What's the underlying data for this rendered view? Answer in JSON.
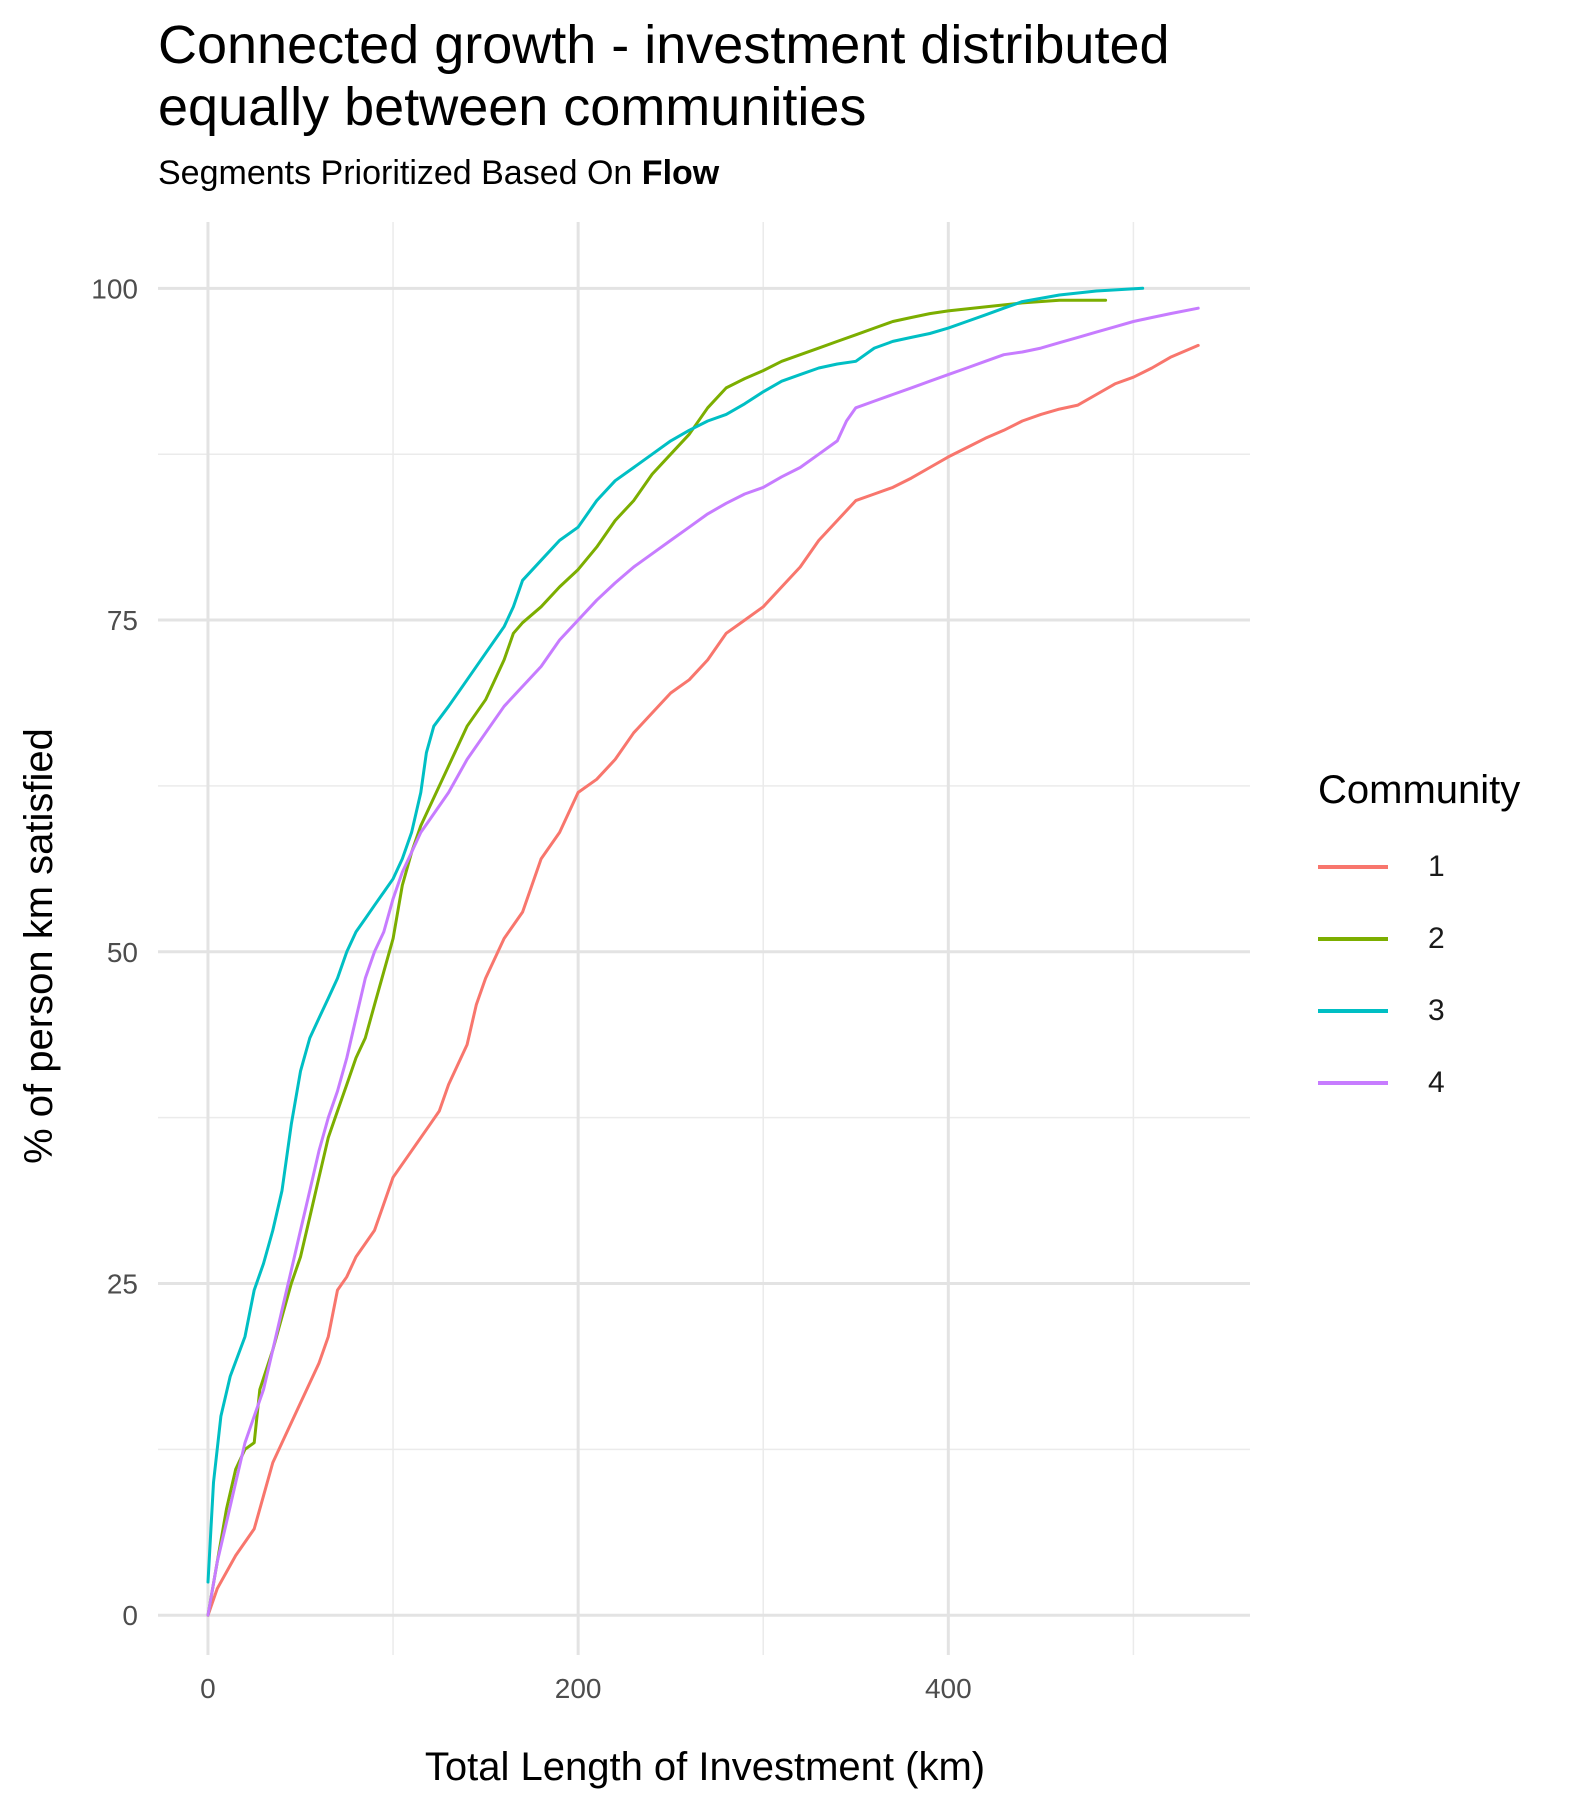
{
  "chart_data": {
    "type": "line",
    "title_line1": "Connected growth - investment distributed",
    "title_line2": "equally between communities",
    "subtitle_prefix": "Segments Prioritized Based On ",
    "subtitle_bold": "Flow",
    "xlabel": "Total Length of Investment (km)",
    "ylabel": "% of person km satisfied",
    "xlim": [
      -27,
      563
    ],
    "ylim": [
      -3,
      105
    ],
    "x_ticks": [
      0,
      200,
      400
    ],
    "y_ticks": [
      0,
      25,
      50,
      75,
      100
    ],
    "grid": true,
    "legend_position": "right",
    "legend_title": "Community",
    "series": [
      {
        "name": "1",
        "color": "#F8766D",
        "points": [
          [
            0,
            0
          ],
          [
            5,
            2
          ],
          [
            15,
            4.5
          ],
          [
            25,
            6.5
          ],
          [
            30,
            9
          ],
          [
            35,
            11.5
          ],
          [
            40,
            13
          ],
          [
            50,
            16
          ],
          [
            60,
            19
          ],
          [
            65,
            21
          ],
          [
            70,
            24.5
          ],
          [
            75,
            25.5
          ],
          [
            80,
            27
          ],
          [
            90,
            29
          ],
          [
            95,
            31
          ],
          [
            100,
            33
          ],
          [
            110,
            35
          ],
          [
            120,
            37
          ],
          [
            125,
            38
          ],
          [
            130,
            40
          ],
          [
            140,
            43
          ],
          [
            145,
            46
          ],
          [
            150,
            48
          ],
          [
            160,
            51
          ],
          [
            170,
            53
          ],
          [
            180,
            57
          ],
          [
            190,
            59
          ],
          [
            200,
            62
          ],
          [
            210,
            63
          ],
          [
            220,
            64.5
          ],
          [
            230,
            66.5
          ],
          [
            240,
            68
          ],
          [
            250,
            69.5
          ],
          [
            260,
            70.5
          ],
          [
            270,
            72
          ],
          [
            280,
            74
          ],
          [
            290,
            75
          ],
          [
            300,
            76
          ],
          [
            310,
            77.5
          ],
          [
            320,
            79
          ],
          [
            330,
            81
          ],
          [
            340,
            82.5
          ],
          [
            350,
            84
          ],
          [
            360,
            84.5
          ],
          [
            370,
            85
          ],
          [
            380,
            85.7
          ],
          [
            390,
            86.5
          ],
          [
            400,
            87.3
          ],
          [
            410,
            88
          ],
          [
            420,
            88.7
          ],
          [
            430,
            89.3
          ],
          [
            440,
            90
          ],
          [
            450,
            90.5
          ],
          [
            460,
            90.9
          ],
          [
            470,
            91.2
          ],
          [
            480,
            92
          ],
          [
            490,
            92.8
          ],
          [
            500,
            93.3
          ],
          [
            510,
            94
          ],
          [
            520,
            94.8
          ],
          [
            535,
            95.7
          ]
        ]
      },
      {
        "name": "2",
        "color": "#7CAE00",
        "points": [
          [
            0,
            0
          ],
          [
            5,
            4
          ],
          [
            10,
            8
          ],
          [
            15,
            11
          ],
          [
            20,
            12.5
          ],
          [
            25,
            13
          ],
          [
            28,
            17
          ],
          [
            35,
            20
          ],
          [
            40,
            22.5
          ],
          [
            45,
            25
          ],
          [
            50,
            27
          ],
          [
            55,
            30
          ],
          [
            60,
            33
          ],
          [
            65,
            36
          ],
          [
            70,
            38
          ],
          [
            75,
            40
          ],
          [
            80,
            42
          ],
          [
            85,
            43.5
          ],
          [
            90,
            46
          ],
          [
            95,
            48.5
          ],
          [
            100,
            51
          ],
          [
            105,
            55
          ],
          [
            110,
            57.5
          ],
          [
            115,
            59.5
          ],
          [
            120,
            61
          ],
          [
            130,
            64
          ],
          [
            140,
            67
          ],
          [
            150,
            69
          ],
          [
            155,
            70.5
          ],
          [
            160,
            72
          ],
          [
            165,
            74
          ],
          [
            170,
            74.8
          ],
          [
            180,
            76
          ],
          [
            190,
            77.5
          ],
          [
            200,
            78.8
          ],
          [
            210,
            80.5
          ],
          [
            220,
            82.5
          ],
          [
            230,
            84
          ],
          [
            240,
            86
          ],
          [
            250,
            87.5
          ],
          [
            260,
            89
          ],
          [
            270,
            91
          ],
          [
            280,
            92.5
          ],
          [
            290,
            93.2
          ],
          [
            300,
            93.8
          ],
          [
            310,
            94.5
          ],
          [
            320,
            95
          ],
          [
            330,
            95.5
          ],
          [
            340,
            96
          ],
          [
            350,
            96.5
          ],
          [
            360,
            97
          ],
          [
            370,
            97.5
          ],
          [
            380,
            97.8
          ],
          [
            390,
            98.1
          ],
          [
            400,
            98.3
          ],
          [
            420,
            98.6
          ],
          [
            440,
            98.9
          ],
          [
            460,
            99.1
          ],
          [
            485,
            99.1
          ]
        ]
      },
      {
        "name": "3",
        "color": "#00BFC4",
        "points": [
          [
            0,
            2.5
          ],
          [
            3,
            10
          ],
          [
            7,
            15
          ],
          [
            12,
            18
          ],
          [
            20,
            21
          ],
          [
            25,
            24.5
          ],
          [
            30,
            26.5
          ],
          [
            35,
            29
          ],
          [
            40,
            32
          ],
          [
            45,
            37
          ],
          [
            50,
            41
          ],
          [
            55,
            43.5
          ],
          [
            60,
            45
          ],
          [
            65,
            46.5
          ],
          [
            70,
            48
          ],
          [
            75,
            50
          ],
          [
            80,
            51.5
          ],
          [
            85,
            52.5
          ],
          [
            90,
            53.5
          ],
          [
            95,
            54.5
          ],
          [
            100,
            55.5
          ],
          [
            105,
            57
          ],
          [
            110,
            59
          ],
          [
            115,
            62
          ],
          [
            118,
            65
          ],
          [
            122,
            67
          ],
          [
            130,
            68.5
          ],
          [
            140,
            70.5
          ],
          [
            150,
            72.5
          ],
          [
            160,
            74.5
          ],
          [
            165,
            76
          ],
          [
            170,
            78
          ],
          [
            180,
            79.5
          ],
          [
            190,
            81
          ],
          [
            200,
            82
          ],
          [
            210,
            84
          ],
          [
            220,
            85.5
          ],
          [
            230,
            86.5
          ],
          [
            240,
            87.5
          ],
          [
            250,
            88.5
          ],
          [
            260,
            89.3
          ],
          [
            270,
            90
          ],
          [
            280,
            90.5
          ],
          [
            290,
            91.3
          ],
          [
            300,
            92.2
          ],
          [
            310,
            93
          ],
          [
            320,
            93.5
          ],
          [
            330,
            94
          ],
          [
            340,
            94.3
          ],
          [
            350,
            94.5
          ],
          [
            360,
            95.5
          ],
          [
            370,
            96
          ],
          [
            380,
            96.3
          ],
          [
            390,
            96.6
          ],
          [
            400,
            97
          ],
          [
            410,
            97.5
          ],
          [
            420,
            98
          ],
          [
            430,
            98.5
          ],
          [
            440,
            99
          ],
          [
            460,
            99.5
          ],
          [
            480,
            99.8
          ],
          [
            505,
            100
          ]
        ]
      },
      {
        "name": "4",
        "color": "#C77CFF",
        "points": [
          [
            0,
            0
          ],
          [
            5,
            4
          ],
          [
            10,
            7
          ],
          [
            15,
            10
          ],
          [
            20,
            13
          ],
          [
            25,
            15
          ],
          [
            30,
            17
          ],
          [
            35,
            20
          ],
          [
            40,
            23
          ],
          [
            45,
            26
          ],
          [
            50,
            29
          ],
          [
            55,
            32
          ],
          [
            60,
            35
          ],
          [
            65,
            37.5
          ],
          [
            70,
            39.5
          ],
          [
            75,
            42
          ],
          [
            80,
            45
          ],
          [
            85,
            48
          ],
          [
            90,
            50
          ],
          [
            95,
            51.5
          ],
          [
            100,
            54
          ],
          [
            105,
            56
          ],
          [
            110,
            57.5
          ],
          [
            115,
            59
          ],
          [
            120,
            60
          ],
          [
            130,
            62
          ],
          [
            140,
            64.5
          ],
          [
            150,
            66.5
          ],
          [
            160,
            68.5
          ],
          [
            170,
            70
          ],
          [
            180,
            71.5
          ],
          [
            190,
            73.5
          ],
          [
            200,
            75
          ],
          [
            210,
            76.5
          ],
          [
            220,
            77.8
          ],
          [
            230,
            79
          ],
          [
            240,
            80
          ],
          [
            250,
            81
          ],
          [
            260,
            82
          ],
          [
            270,
            83
          ],
          [
            280,
            83.8
          ],
          [
            290,
            84.5
          ],
          [
            300,
            85
          ],
          [
            310,
            85.8
          ],
          [
            320,
            86.5
          ],
          [
            330,
            87.5
          ],
          [
            340,
            88.5
          ],
          [
            345,
            90
          ],
          [
            350,
            91
          ],
          [
            360,
            91.5
          ],
          [
            370,
            92
          ],
          [
            380,
            92.5
          ],
          [
            390,
            93
          ],
          [
            400,
            93.5
          ],
          [
            410,
            94
          ],
          [
            420,
            94.5
          ],
          [
            430,
            95
          ],
          [
            440,
            95.2
          ],
          [
            450,
            95.5
          ],
          [
            460,
            95.9
          ],
          [
            470,
            96.3
          ],
          [
            480,
            96.7
          ],
          [
            490,
            97.1
          ],
          [
            500,
            97.5
          ],
          [
            510,
            97.8
          ],
          [
            520,
            98.1
          ],
          [
            535,
            98.5
          ]
        ]
      }
    ]
  }
}
